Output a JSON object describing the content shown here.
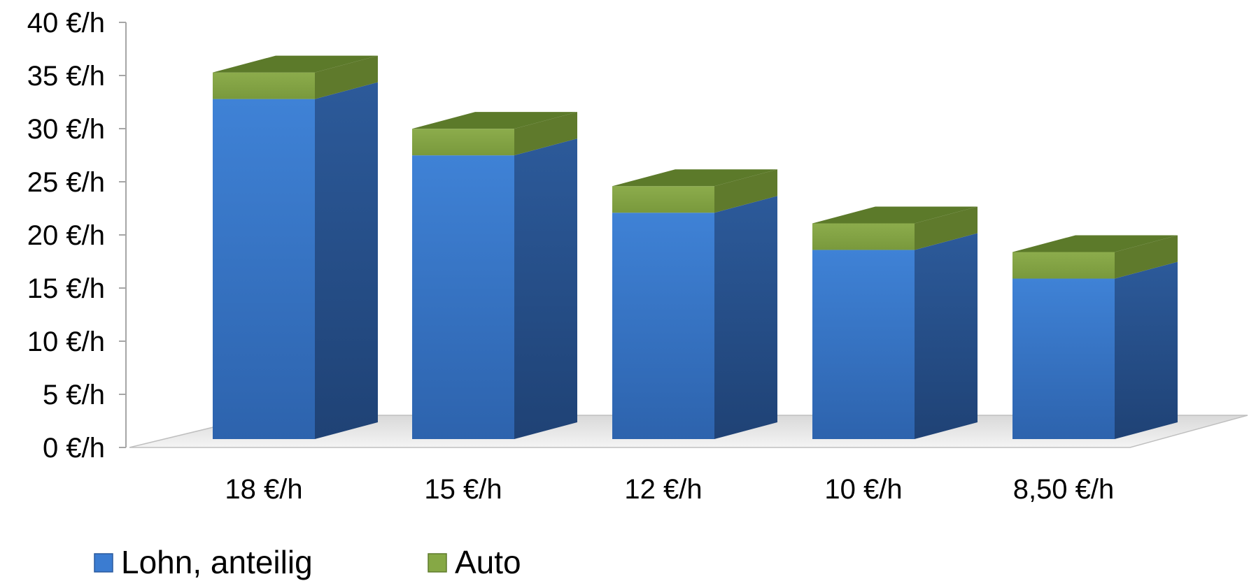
{
  "chart_data": {
    "type": "bar",
    "stacked": true,
    "three_d": true,
    "categories": [
      "18 €/h",
      "15 €/h",
      "12 €/h",
      "10 €/h",
      "8,50 €/h"
    ],
    "series": [
      {
        "name": "Lohn, anteilig",
        "values": [
          32.0,
          26.7,
          21.3,
          17.8,
          15.1
        ],
        "color": "#3b7cd1"
      },
      {
        "name": "Auto",
        "values": [
          2.5,
          2.5,
          2.5,
          2.5,
          2.5
        ],
        "color": "#86a845"
      }
    ],
    "ylim": [
      0,
      40
    ],
    "yticks": [
      "0 €/h",
      "5 €/h",
      "10 €/h",
      "15 €/h",
      "20 €/h",
      "25 €/h",
      "30 €/h",
      "35 €/h",
      "40 €/h"
    ],
    "ytick_values": [
      0,
      5,
      10,
      15,
      20,
      25,
      30,
      35,
      40
    ],
    "grid": false,
    "legend_position": "bottom-left",
    "title": "",
    "xlabel": "",
    "ylabel": ""
  }
}
